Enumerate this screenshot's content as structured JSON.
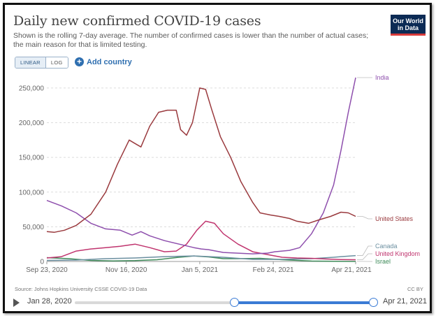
{
  "header": {
    "title": "Daily new confirmed COVID-19 cases",
    "subtitle": "Shown is the rolling 7-day average. The number of confirmed cases is lower than the number of actual cases; the main reason for that is limited testing.",
    "logo_line1": "Our World",
    "logo_line2": "in Data"
  },
  "controls": {
    "scale_linear": "LINEAR",
    "scale_log": "LOG",
    "add_country": "Add country"
  },
  "footer": {
    "source": "Source: Johns Hopkins University CSSE COVID-19 Data",
    "license": "CC BY"
  },
  "timeline": {
    "start_date": "Jan 28, 2020",
    "end_date": "Apr 21, 2021",
    "range_start_fraction": 0.53,
    "range_end_fraction": 1.0
  },
  "colors": {
    "India": "#8e4fad",
    "United States": "#9a3a3e",
    "Canada": "#6b8fa0",
    "United Kingdom": "#c0346e",
    "Israel": "#3f8b5a",
    "logo_bg": "#0c2b55",
    "accent": "#3a7bd5"
  },
  "chart_data": {
    "type": "line",
    "title": "Daily new confirmed COVID-19 cases",
    "xlabel": "",
    "ylabel": "",
    "x_domain": [
      0,
      210
    ],
    "ylim": [
      0,
      265000
    ],
    "y_ticks": [
      {
        "value": 0,
        "label": "0"
      },
      {
        "value": 50000,
        "label": "50,000"
      },
      {
        "value": 100000,
        "label": "100,000"
      },
      {
        "value": 150000,
        "label": "150,000"
      },
      {
        "value": 200000,
        "label": "200,000"
      },
      {
        "value": 250000,
        "label": "250,000"
      }
    ],
    "x_ticks": [
      {
        "day": 0,
        "label": "Sep 23, 2020"
      },
      {
        "day": 54,
        "label": "Nov 16, 2020"
      },
      {
        "day": 104,
        "label": "Jan 5, 2021"
      },
      {
        "day": 154,
        "label": "Feb 24, 2021"
      },
      {
        "day": 210,
        "label": "Apr 21, 2021"
      }
    ],
    "grid": true,
    "series": [
      {
        "name": "India",
        "points": [
          [
            0,
            88000
          ],
          [
            10,
            80000
          ],
          [
            20,
            70000
          ],
          [
            30,
            55000
          ],
          [
            40,
            47000
          ],
          [
            50,
            45000
          ],
          [
            58,
            38000
          ],
          [
            64,
            43000
          ],
          [
            70,
            37000
          ],
          [
            80,
            30000
          ],
          [
            90,
            25000
          ],
          [
            100,
            20000
          ],
          [
            105,
            18000
          ],
          [
            110,
            17000
          ],
          [
            120,
            13000
          ],
          [
            130,
            12000
          ],
          [
            140,
            11000
          ],
          [
            150,
            12000
          ],
          [
            155,
            14000
          ],
          [
            165,
            16000
          ],
          [
            172,
            20000
          ],
          [
            180,
            40000
          ],
          [
            188,
            70000
          ],
          [
            195,
            110000
          ],
          [
            200,
            160000
          ],
          [
            205,
            215000
          ],
          [
            210,
            265000
          ]
        ]
      },
      {
        "name": "United States",
        "points": [
          [
            0,
            43000
          ],
          [
            5,
            42000
          ],
          [
            12,
            45000
          ],
          [
            20,
            52000
          ],
          [
            30,
            68000
          ],
          [
            40,
            100000
          ],
          [
            48,
            140000
          ],
          [
            56,
            175000
          ],
          [
            60,
            170000
          ],
          [
            64,
            165000
          ],
          [
            70,
            195000
          ],
          [
            76,
            215000
          ],
          [
            82,
            218000
          ],
          [
            88,
            218000
          ],
          [
            91,
            190000
          ],
          [
            95,
            182000
          ],
          [
            99,
            200000
          ],
          [
            104,
            250000
          ],
          [
            108,
            248000
          ],
          [
            112,
            220000
          ],
          [
            118,
            180000
          ],
          [
            125,
            150000
          ],
          [
            132,
            115000
          ],
          [
            140,
            85000
          ],
          [
            145,
            70000
          ],
          [
            152,
            67000
          ],
          [
            158,
            65000
          ],
          [
            165,
            62000
          ],
          [
            170,
            58000
          ],
          [
            178,
            55000
          ],
          [
            185,
            60000
          ],
          [
            193,
            65000
          ],
          [
            200,
            71000
          ],
          [
            205,
            70000
          ],
          [
            210,
            65000
          ]
        ]
      },
      {
        "name": "Canada",
        "points": [
          [
            0,
            1500
          ],
          [
            20,
            2000
          ],
          [
            40,
            4000
          ],
          [
            60,
            5000
          ],
          [
            80,
            7000
          ],
          [
            100,
            8000
          ],
          [
            120,
            6000
          ],
          [
            140,
            3000
          ],
          [
            160,
            3000
          ],
          [
            180,
            4000
          ],
          [
            195,
            6000
          ],
          [
            200,
            7000
          ],
          [
            210,
            8500
          ]
        ]
      },
      {
        "name": "United Kingdom",
        "points": [
          [
            0,
            5000
          ],
          [
            10,
            7000
          ],
          [
            20,
            15000
          ],
          [
            30,
            18000
          ],
          [
            40,
            20000
          ],
          [
            50,
            22000
          ],
          [
            60,
            25000
          ],
          [
            70,
            20000
          ],
          [
            80,
            14000
          ],
          [
            88,
            15000
          ],
          [
            95,
            25000
          ],
          [
            102,
            45000
          ],
          [
            108,
            58000
          ],
          [
            114,
            55000
          ],
          [
            120,
            40000
          ],
          [
            130,
            25000
          ],
          [
            140,
            14000
          ],
          [
            150,
            10000
          ],
          [
            160,
            6000
          ],
          [
            170,
            5000
          ],
          [
            180,
            4500
          ],
          [
            190,
            3500
          ],
          [
            200,
            2800
          ],
          [
            210,
            2500
          ]
        ]
      },
      {
        "name": "Israel",
        "points": [
          [
            0,
            5500
          ],
          [
            15,
            4000
          ],
          [
            30,
            1500
          ],
          [
            45,
            800
          ],
          [
            60,
            1200
          ],
          [
            75,
            2500
          ],
          [
            90,
            6000
          ],
          [
            100,
            8000
          ],
          [
            110,
            6500
          ],
          [
            120,
            4000
          ],
          [
            130,
            4000
          ],
          [
            145,
            4500
          ],
          [
            160,
            2500
          ],
          [
            180,
            600
          ],
          [
            195,
            250
          ],
          [
            210,
            150
          ]
        ]
      }
    ]
  }
}
